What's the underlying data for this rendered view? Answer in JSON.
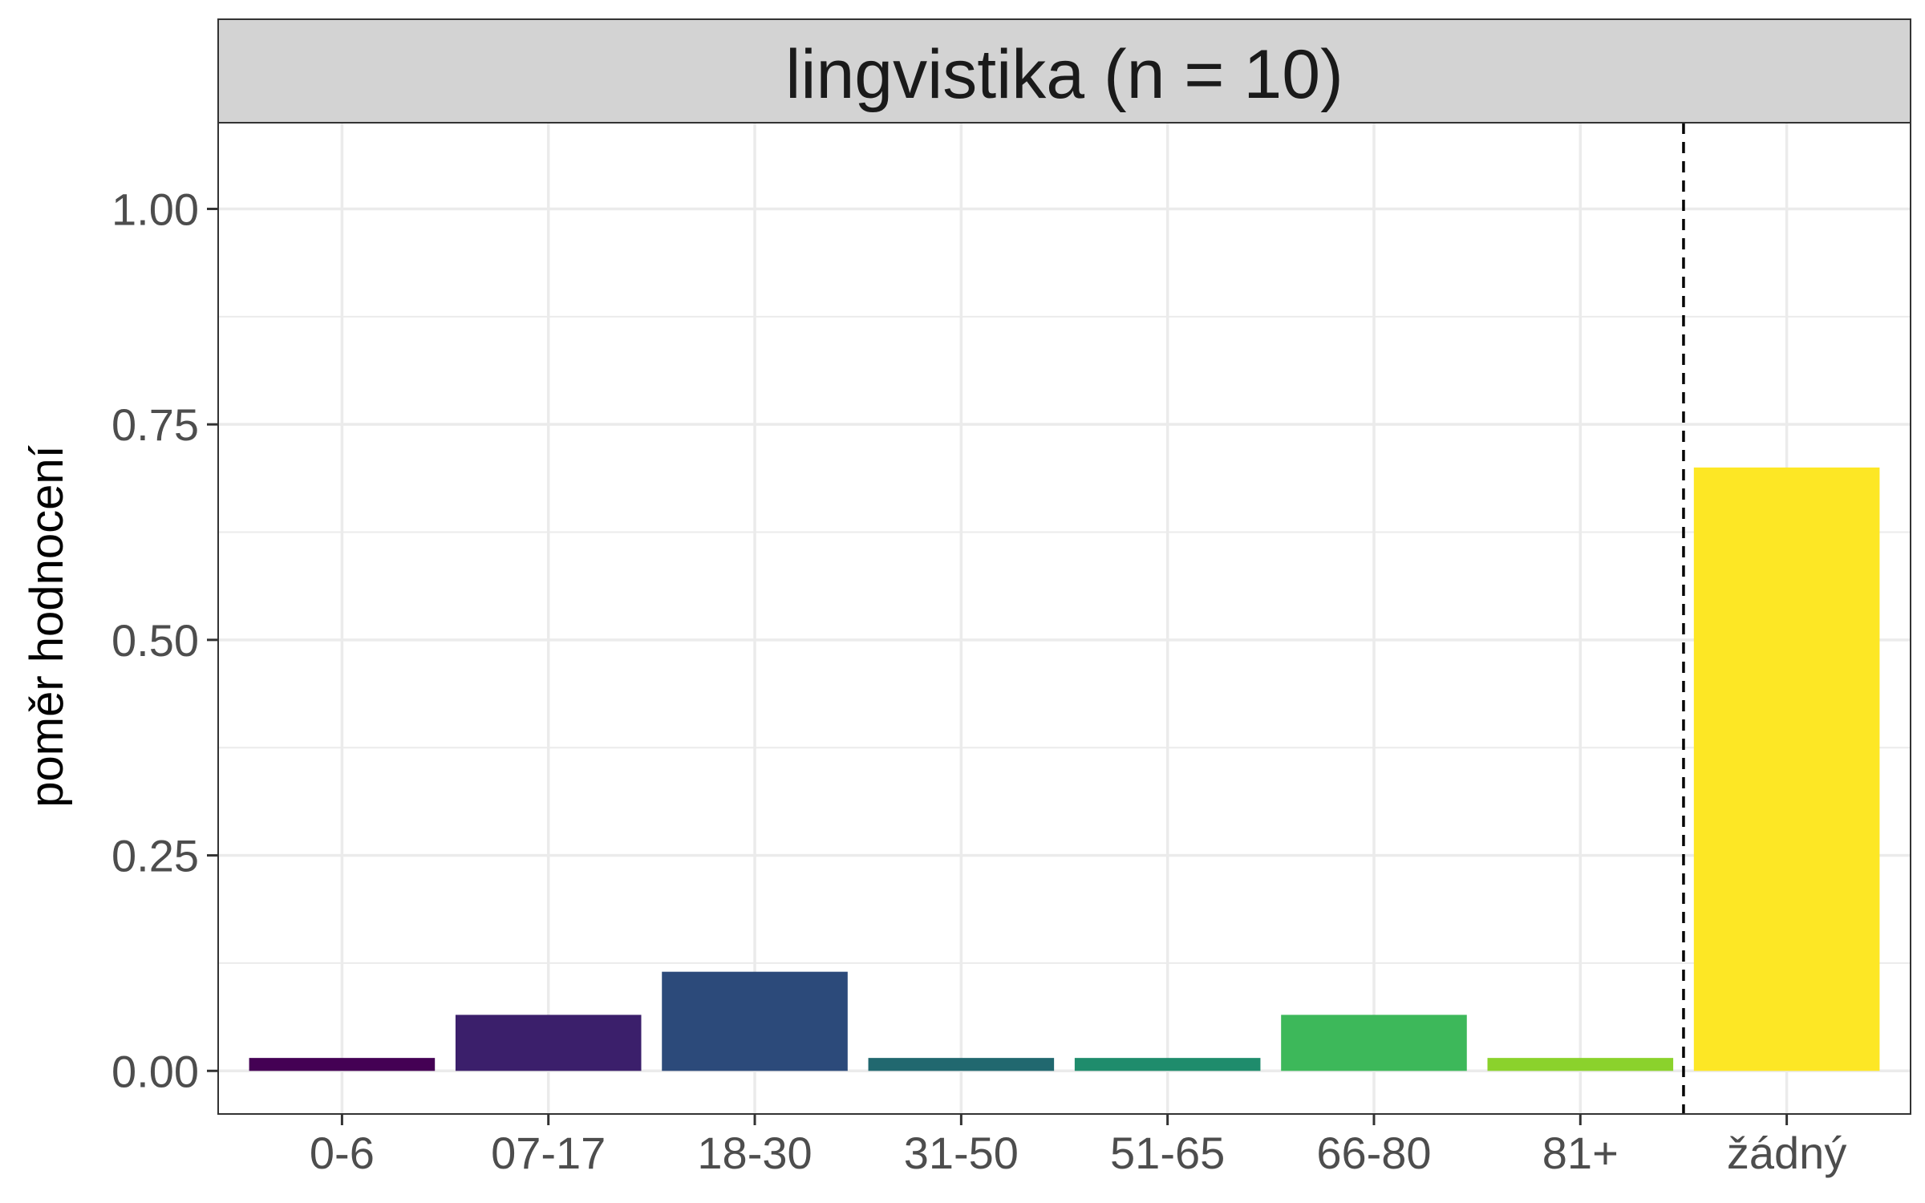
{
  "chart_data": {
    "type": "bar",
    "facet_title": "lingvistika (n = 10)",
    "ylabel": "poměr hodnocení",
    "xlabel": "",
    "categories": [
      "0-6",
      "07-17",
      "18-30",
      "31-50",
      "51-65",
      "66-80",
      "81+",
      "žádný"
    ],
    "values": [
      0.015,
      0.065,
      0.115,
      0.015,
      0.015,
      0.065,
      0.015,
      0.7
    ],
    "colors": [
      "#440154",
      "#3B1F6B",
      "#2C4A7A",
      "#21686F",
      "#1F8C6C",
      "#3DB85A",
      "#8BD22C",
      "#FDE725"
    ],
    "ylim": [
      -0.05,
      1.1
    ],
    "yticks": [
      0.0,
      0.25,
      0.5,
      0.75,
      1.0
    ],
    "ytick_labels": [
      "0.00",
      "0.25",
      "0.50",
      "0.75",
      "1.00"
    ],
    "grid": true,
    "reference_line": {
      "style": "dashed",
      "between_categories": [
        "81+",
        "žádný"
      ]
    },
    "strip_color": "#D3D3D3",
    "panel_border_color": "#333333",
    "grid_color": "#EBEBEB"
  }
}
